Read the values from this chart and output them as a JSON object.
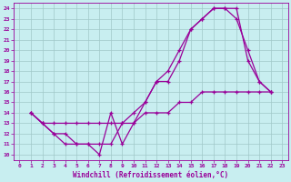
{
  "xlabel": "Windchill (Refroidissement éolien,°C)",
  "bg_color": "#c8eef0",
  "line_color": "#990099",
  "grid_color": "#a0c8c8",
  "xlim": [
    -0.5,
    23.5
  ],
  "ylim": [
    9.5,
    24.5
  ],
  "xticks": [
    0,
    1,
    2,
    3,
    4,
    5,
    6,
    7,
    8,
    9,
    10,
    11,
    12,
    13,
    14,
    15,
    16,
    17,
    18,
    19,
    20,
    21,
    22,
    23
  ],
  "yticks": [
    10,
    11,
    12,
    13,
    14,
    15,
    16,
    17,
    18,
    19,
    20,
    21,
    22,
    23,
    24
  ],
  "line1_x": [
    1,
    2,
    3,
    4,
    5,
    6,
    7,
    8,
    9,
    10,
    11,
    12,
    13,
    14,
    15,
    16,
    17,
    18,
    19,
    20,
    21,
    22
  ],
  "line1_y": [
    14,
    13,
    12,
    11,
    11,
    11,
    10,
    14,
    11,
    13,
    15,
    17,
    18,
    20,
    22,
    23,
    24,
    24,
    24,
    19,
    17,
    16
  ],
  "line2_x": [
    1,
    2,
    3,
    4,
    5,
    6,
    7,
    8,
    9,
    10,
    11,
    12,
    13,
    14,
    15,
    16,
    17,
    18,
    19,
    20,
    21,
    22
  ],
  "line2_y": [
    14,
    13,
    12,
    12,
    11,
    11,
    11,
    11,
    13,
    14,
    15,
    17,
    17,
    19,
    22,
    23,
    24,
    24,
    23,
    20,
    17,
    16
  ],
  "line3_x": [
    1,
    2,
    3,
    4,
    5,
    6,
    7,
    8,
    9,
    10,
    11,
    12,
    13,
    14,
    15,
    16,
    17,
    18,
    19,
    20,
    21,
    22
  ],
  "line3_y": [
    14,
    13,
    13,
    13,
    13,
    13,
    13,
    13,
    13,
    13,
    14,
    14,
    14,
    15,
    15,
    16,
    16,
    16,
    16,
    16,
    16,
    16
  ]
}
